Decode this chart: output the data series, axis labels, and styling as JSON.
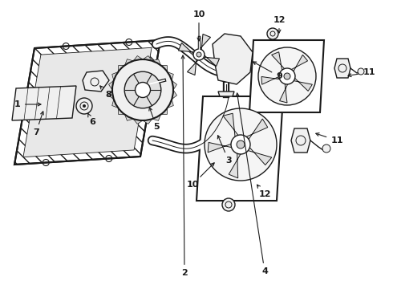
{
  "background_color": "#ffffff",
  "line_color": "#1a1a1a",
  "fig_width": 4.9,
  "fig_height": 3.6,
  "dpi": 100,
  "font_size": 8,
  "arrow_color": "#1a1a1a"
}
